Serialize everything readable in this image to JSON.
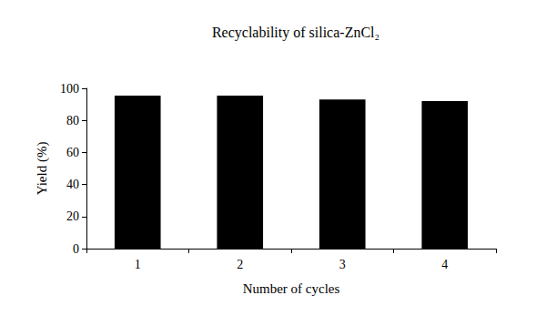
{
  "chart_data": {
    "type": "bar",
    "title": "Recyclability of silica-ZnCl₂",
    "x_label": "Number of cycles",
    "y_label": "Yield (%)",
    "categories": [
      "1",
      "2",
      "3",
      "4"
    ],
    "values": [
      95.5,
      95.5,
      93,
      92
    ],
    "color": "#000000",
    "ylim": [
      0,
      100
    ],
    "yticks": [
      0,
      20,
      40,
      60,
      80,
      100
    ],
    "grid": false
  }
}
